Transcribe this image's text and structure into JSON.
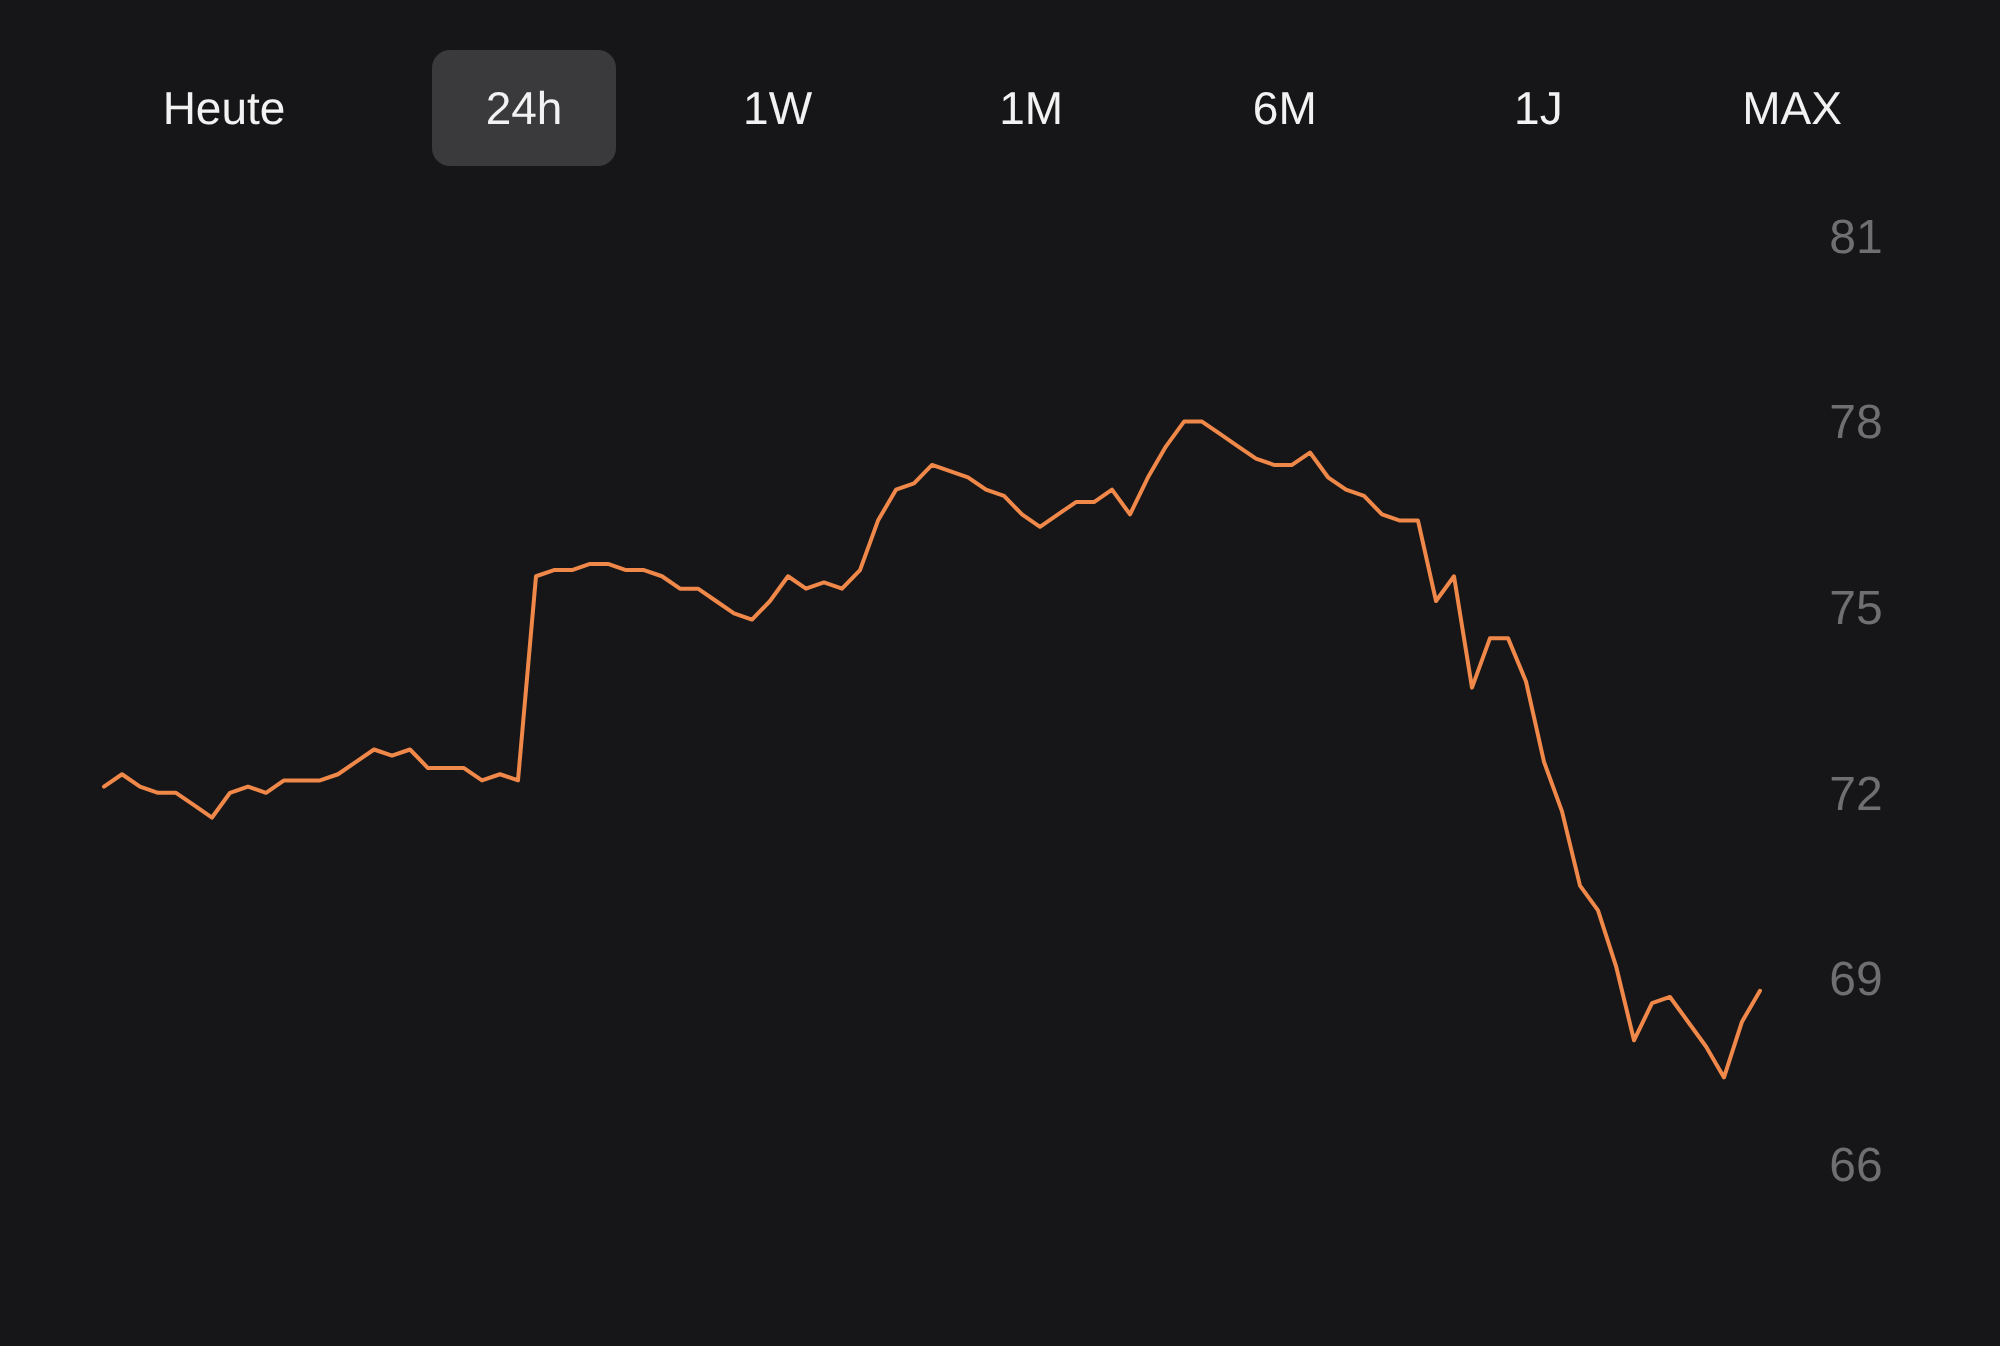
{
  "chart_data": {
    "type": "line",
    "annotations": [
      "Heute",
      "24h",
      "1W",
      "1M",
      "6M",
      "1J",
      "MAX"
    ],
    "categories": [
      null,
      null,
      null,
      null,
      null,
      null,
      null,
      null,
      null,
      null,
      null,
      null,
      null,
      null,
      null,
      null,
      null,
      null,
      null,
      null,
      null,
      null,
      null,
      null,
      null,
      null,
      null,
      null,
      null,
      null,
      null,
      null,
      null,
      null,
      null,
      null,
      null,
      null,
      null,
      null,
      null,
      null,
      null,
      null,
      null,
      null,
      null,
      null,
      null,
      null,
      null,
      null,
      null,
      null,
      null,
      null,
      null,
      null,
      null,
      null,
      null,
      null,
      null,
      null,
      null,
      null,
      null,
      null,
      null,
      null,
      null,
      null,
      null,
      null,
      null,
      null,
      null,
      null,
      null,
      null,
      null,
      null,
      null,
      null,
      null,
      null,
      null,
      null,
      null,
      null,
      null,
      null,
      null
    ],
    "series": [
      {
        "color": "#f0884a",
        "values": [
          72.1,
          72.3,
          72.1,
          72.0,
          72.0,
          71.8,
          71.6,
          72.0,
          72.1,
          72.0,
          72.2,
          72.2,
          72.2,
          72.3,
          72.5,
          72.7,
          72.6,
          72.7,
          72.4,
          72.4,
          72.4,
          72.2,
          72.3,
          72.2,
          75.5,
          75.6,
          75.6,
          75.7,
          75.7,
          75.6,
          75.6,
          75.5,
          75.3,
          75.3,
          75.1,
          74.9,
          74.8,
          75.1,
          75.5,
          75.3,
          75.4,
          75.3,
          75.6,
          76.4,
          76.9,
          77.0,
          77.3,
          77.2,
          77.1,
          76.9,
          76.8,
          76.5,
          76.3,
          76.5,
          76.7,
          76.7,
          76.9,
          76.5,
          77.1,
          77.6,
          78.0,
          78.0,
          77.8,
          77.6,
          77.4,
          77.3,
          77.3,
          77.5,
          77.1,
          76.9,
          76.8,
          76.5,
          76.4,
          76.4,
          75.1,
          75.5,
          73.7,
          74.5,
          74.5,
          73.8,
          72.5,
          71.7,
          70.5,
          70.1,
          69.2,
          68.0,
          68.6,
          68.7,
          68.3,
          67.9,
          67.4,
          68.3,
          68.8
        ]
      }
    ],
    "ylim": [
      66,
      81
    ],
    "yticks": [
      66,
      69,
      72,
      75,
      78,
      81
    ],
    "grid": false,
    "marker": "none",
    "line_style": "solid"
  }
}
